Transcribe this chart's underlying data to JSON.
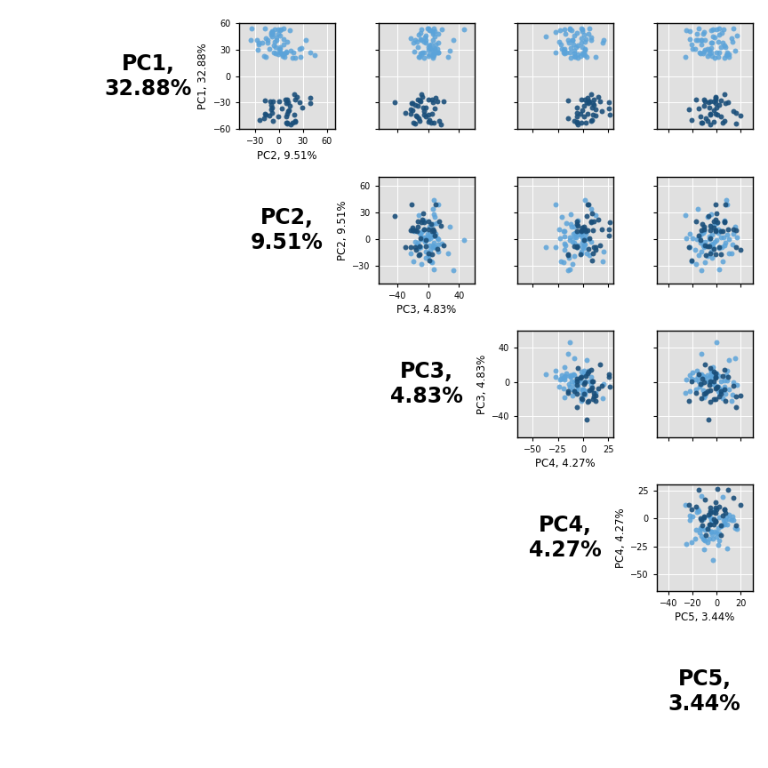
{
  "pc_labels": [
    "PC1,\n32.88%",
    "PC2,\n9.51%",
    "PC3,\n4.83%",
    "PC4,\n4.27%",
    "PC5,\n3.44%"
  ],
  "pc_axis_labels": [
    "PC1, 32.88%",
    "PC2, 9.51%",
    "PC3, 4.83%",
    "PC4, 4.27%",
    "PC5, 3.44%"
  ],
  "n_components": 5,
  "background_color": "#ffffff",
  "plot_bg_color": "#e0e0e0",
  "grid_color": "#ffffff",
  "point_color_light": "#5ba3d9",
  "point_color_dark": "#1a4f7a",
  "n_points": 100,
  "seed": 42,
  "diagonal_label_fontsize": 17,
  "axis_label_fontsize": 8.5,
  "tick_fontsize": 7,
  "fig_size": [
    8.64,
    8.64
  ],
  "dpi": 100,
  "pc1_range": [
    -60,
    60
  ],
  "pc2_range": [
    -50,
    70
  ],
  "pc3_range": [
    -65,
    60
  ],
  "pc4_range": [
    -65,
    30
  ],
  "pc5_range": [
    -50,
    30
  ]
}
